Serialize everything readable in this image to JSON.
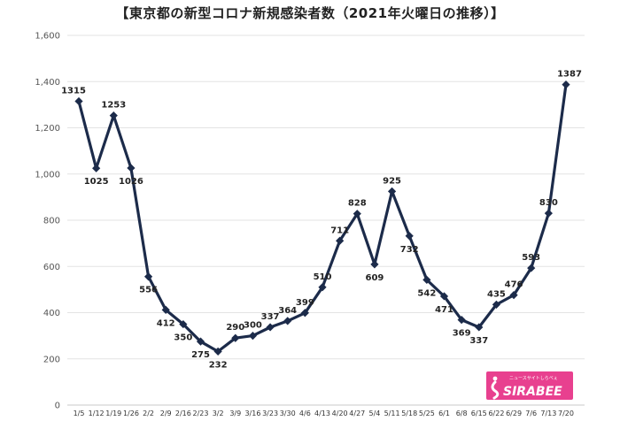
{
  "chart_data": {
    "type": "line",
    "title": "【東京都の新型コロナ新規感染者数（2021年火曜日の推移）】",
    "xlabel": "",
    "ylabel": "",
    "ylim": [
      0,
      1600
    ],
    "yticks": [
      "0",
      "200",
      "400",
      "600",
      "800",
      "1,000",
      "1,200",
      "1,400",
      "1,600"
    ],
    "grid": true,
    "legend": "none",
    "line_color": "#1c2b4a",
    "categories": [
      "1/5",
      "1/12",
      "1/19",
      "1/26",
      "2/2",
      "2/9",
      "2/16",
      "2/23",
      "3/2",
      "3/9",
      "3/16",
      "3/23",
      "3/30",
      "4/6",
      "4/13",
      "4/20",
      "4/27",
      "5/4",
      "5/11",
      "5/18",
      "5/25",
      "6/1",
      "6/8",
      "6/15",
      "6/22",
      "6/29",
      "7/6",
      "7/13",
      "7/20"
    ],
    "series": [
      {
        "values": [
          1315,
          1025,
          1253,
          1026,
          556,
          412,
          350,
          275,
          232,
          290,
          300,
          337,
          364,
          399,
          510,
          711,
          828,
          609,
          925,
          732,
          542,
          471,
          369,
          337,
          435,
          476,
          593,
          830,
          1387
        ]
      }
    ],
    "data_labels": [
      "1315",
      "1025",
      "1253",
      "1026",
      "556",
      "412",
      "350",
      "275",
      "232",
      "290",
      "300",
      "337",
      "364",
      "399",
      "510",
      "711",
      "828",
      "609",
      "925",
      "732",
      "542",
      "471",
      "369",
      "337",
      "435",
      "476",
      "593",
      "830",
      "1387"
    ]
  },
  "logo": {
    "text": "SIRABEE",
    "subtext": "ニュースサイトしらべぇ",
    "color": "#e8408f"
  }
}
